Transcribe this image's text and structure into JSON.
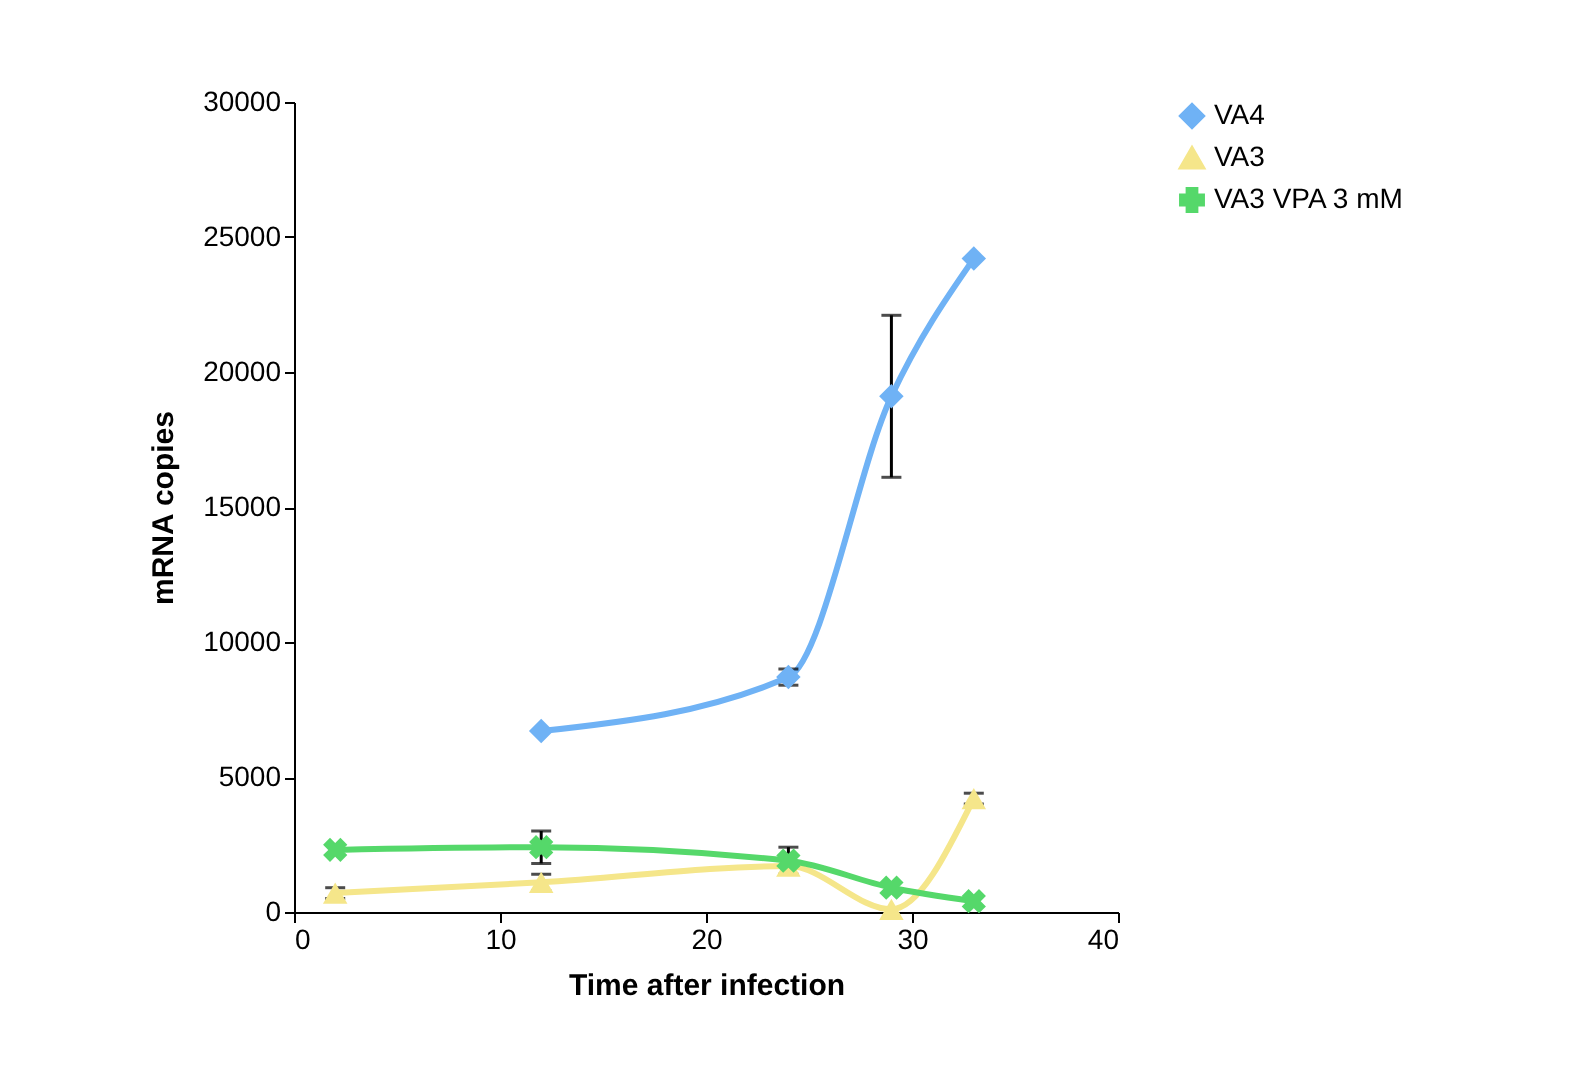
{
  "chart_data": {
    "type": "line",
    "xlabel": "Time after infection",
    "ylabel": "mRNA copies",
    "xlim": [
      0,
      40
    ],
    "xticks": [
      0,
      10,
      20,
      30,
      40
    ],
    "ylim": [
      0,
      30000
    ],
    "yticks": [
      0,
      5000,
      10000,
      15000,
      20000,
      25000,
      30000
    ],
    "legend": "right",
    "grid": false,
    "series": [
      {
        "name": "VA4",
        "color": "#6fb2f5",
        "marker": "diamond",
        "x": [
          12,
          24,
          29,
          33
        ],
        "values": [
          6700,
          8700,
          19100,
          24200
        ],
        "errors": [
          null,
          300,
          3000,
          null
        ]
      },
      {
        "name": "VA3",
        "color": "#f5e68a",
        "marker": "triangle",
        "x": [
          2,
          12,
          24,
          29,
          33
        ],
        "values": [
          700,
          1100,
          1700,
          100,
          4200
        ],
        "errors": [
          200,
          300,
          null,
          null,
          200
        ]
      },
      {
        "name": "VA3 VPA 3 mM",
        "color": "#55d86a",
        "marker": "cross",
        "x": [
          2,
          12,
          24,
          29,
          33
        ],
        "values": [
          2300,
          2400,
          1900,
          900,
          400
        ],
        "errors": [
          null,
          600,
          500,
          null,
          null
        ]
      }
    ]
  }
}
